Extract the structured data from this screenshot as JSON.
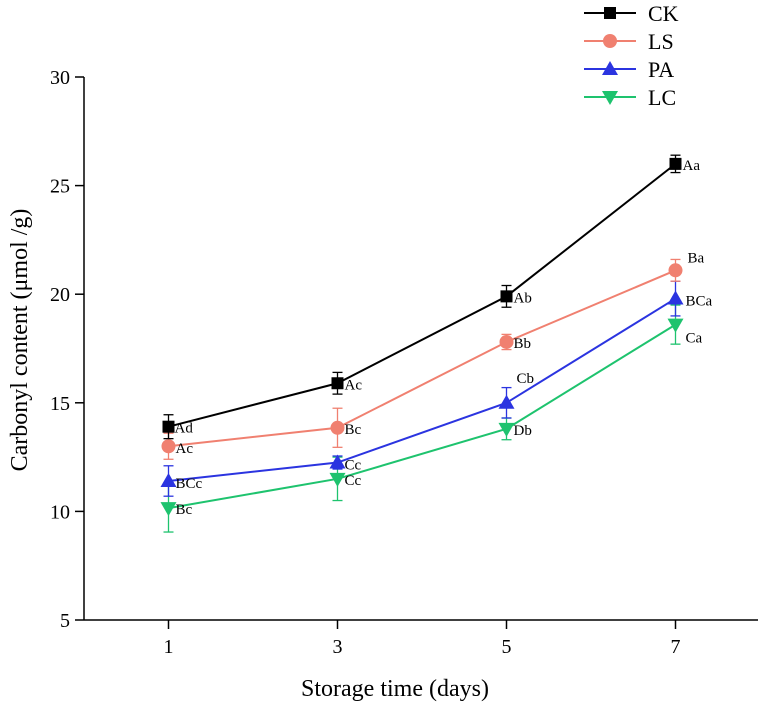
{
  "chart_data": {
    "type": "line",
    "xlabel": "Storage time (days)",
    "ylabel": "Carbonyl content  (μmol /g)",
    "x": [
      1,
      3,
      5,
      7
    ],
    "xticks": [
      "1",
      "3",
      "5",
      "7"
    ],
    "ylim": [
      5,
      30
    ],
    "yticks": [
      "5",
      "10",
      "15",
      "20",
      "25",
      "30"
    ],
    "grid": false,
    "legend_position": "top-right",
    "series": [
      {
        "name": "CK",
        "marker": "square",
        "color": "#000000",
        "values": [
          13.9,
          15.9,
          19.9,
          26.0
        ],
        "errors": [
          0.55,
          0.5,
          0.5,
          0.4
        ],
        "labels": [
          "Ad",
          "Ac",
          "Ab",
          "Aa"
        ]
      },
      {
        "name": "LS",
        "marker": "circle",
        "color": "#f08070",
        "values": [
          13.0,
          13.85,
          17.8,
          21.1
        ],
        "errors": [
          0.6,
          0.9,
          0.35,
          0.5
        ],
        "labels": [
          "Ac",
          "Bc",
          "Bb",
          "Ba"
        ]
      },
      {
        "name": "PA",
        "marker": "triangle-up",
        "color": "#2b34e0",
        "values": [
          11.4,
          12.25,
          15.0,
          19.8
        ],
        "errors": [
          0.7,
          0.3,
          0.7,
          0.8
        ],
        "labels": [
          "BCc",
          "Cc",
          "Cb",
          "BCa"
        ]
      },
      {
        "name": "LC",
        "marker": "triangle-down",
        "color": "#1ec36e",
        "values": [
          10.15,
          11.5,
          13.8,
          18.6
        ],
        "errors": [
          1.1,
          1.0,
          0.5,
          0.9
        ],
        "labels": [
          "Bc",
          "Cc",
          "Db",
          "Ca"
        ]
      }
    ]
  }
}
